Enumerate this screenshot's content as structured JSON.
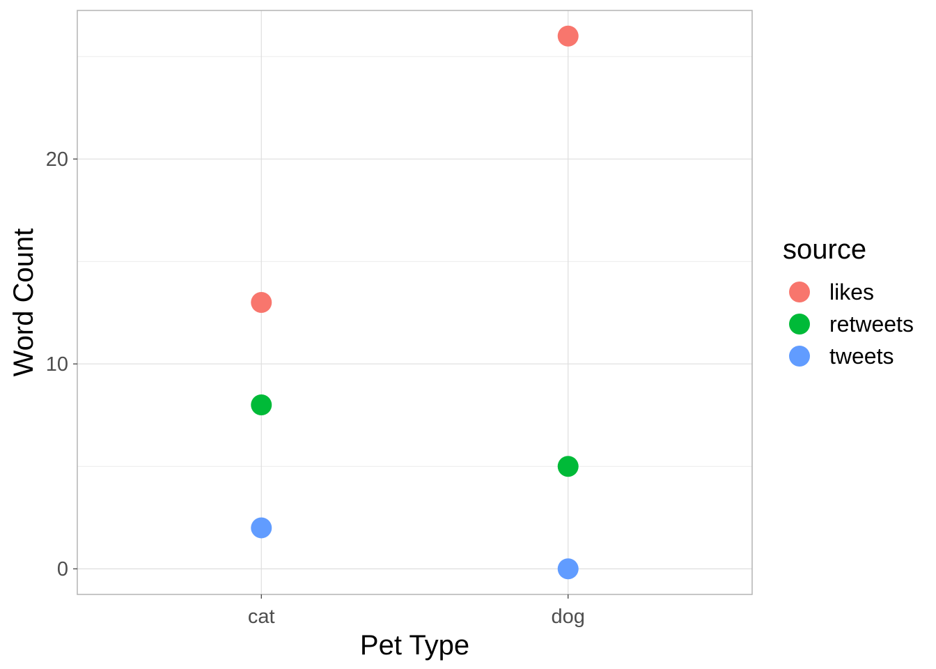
{
  "chart_data": {
    "type": "scatter",
    "categories": [
      "cat",
      "dog"
    ],
    "series": [
      {
        "name": "likes",
        "color": "#F8766D",
        "values": [
          13,
          26
        ]
      },
      {
        "name": "retweets",
        "color": "#00BA38",
        "values": [
          8,
          5
        ]
      },
      {
        "name": "tweets",
        "color": "#619CFF",
        "values": [
          2,
          0
        ]
      }
    ],
    "xlabel": "Pet Type",
    "ylabel": "Word Count",
    "ylim": [
      -1.25,
      27.25
    ],
    "yticks": [
      0,
      10,
      20
    ],
    "grid": true,
    "legend": {
      "title": "source",
      "position": "right"
    }
  }
}
